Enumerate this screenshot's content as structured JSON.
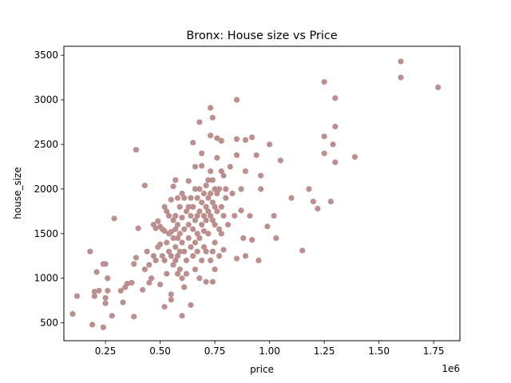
{
  "chart_data": {
    "type": "scatter",
    "title": "Bronx: House size vs Price",
    "xlabel": "price",
    "ylabel": "house_size",
    "x_offset_label": "1e6",
    "xlim": [
      0.06,
      1.87
    ],
    "ylim": [
      300,
      3600
    ],
    "xticks": [
      {
        "value": 0.25,
        "label": "0.25"
      },
      {
        "value": 0.5,
        "label": "0.50"
      },
      {
        "value": 0.75,
        "label": "0.75"
      },
      {
        "value": 1.0,
        "label": "1.00"
      },
      {
        "value": 1.25,
        "label": "1.25"
      },
      {
        "value": 1.5,
        "label": "1.50"
      },
      {
        "value": 1.75,
        "label": "1.75"
      }
    ],
    "yticks": [
      {
        "value": 500,
        "label": "500"
      },
      {
        "value": 1000,
        "label": "1000"
      },
      {
        "value": 1500,
        "label": "1500"
      },
      {
        "value": 2000,
        "label": "2000"
      },
      {
        "value": 2500,
        "label": "2500"
      },
      {
        "value": 3000,
        "label": "3000"
      },
      {
        "value": 3500,
        "label": "3500"
      }
    ],
    "grid": false,
    "legend": "none",
    "marker_color": "#bc8f8f",
    "points": [
      [
        0.1,
        600
      ],
      [
        0.12,
        800
      ],
      [
        0.18,
        1300
      ],
      [
        0.19,
        480
      ],
      [
        0.2,
        800
      ],
      [
        0.2,
        850
      ],
      [
        0.21,
        1070
      ],
      [
        0.22,
        860
      ],
      [
        0.24,
        450
      ],
      [
        0.24,
        1160
      ],
      [
        0.25,
        1160
      ],
      [
        0.25,
        720
      ],
      [
        0.25,
        780
      ],
      [
        0.26,
        860
      ],
      [
        0.26,
        1000
      ],
      [
        0.28,
        580
      ],
      [
        0.29,
        1670
      ],
      [
        0.32,
        860
      ],
      [
        0.33,
        730
      ],
      [
        0.34,
        900
      ],
      [
        0.35,
        940
      ],
      [
        0.37,
        950
      ],
      [
        0.38,
        570
      ],
      [
        0.38,
        1160
      ],
      [
        0.39,
        1230
      ],
      [
        0.39,
        2440
      ],
      [
        0.4,
        1560
      ],
      [
        0.42,
        870
      ],
      [
        0.43,
        1100
      ],
      [
        0.43,
        2040
      ],
      [
        0.44,
        1300
      ],
      [
        0.45,
        1150
      ],
      [
        0.45,
        950
      ],
      [
        0.46,
        1000
      ],
      [
        0.47,
        1250
      ],
      [
        0.47,
        1600
      ],
      [
        0.48,
        1200
      ],
      [
        0.48,
        1560
      ],
      [
        0.49,
        1640
      ],
      [
        0.49,
        1350
      ],
      [
        0.5,
        1580
      ],
      [
        0.5,
        1380
      ],
      [
        0.5,
        930
      ],
      [
        0.51,
        1550
      ],
      [
        0.51,
        1250
      ],
      [
        0.52,
        1800
      ],
      [
        0.52,
        1530
      ],
      [
        0.52,
        1200
      ],
      [
        0.52,
        680
      ],
      [
        0.53,
        1750
      ],
      [
        0.53,
        1400
      ],
      [
        0.53,
        1050
      ],
      [
        0.54,
        1700
      ],
      [
        0.54,
        1500
      ],
      [
        0.54,
        1300
      ],
      [
        0.55,
        1880
      ],
      [
        0.55,
        1520
      ],
      [
        0.55,
        1250
      ],
      [
        0.55,
        820
      ],
      [
        0.55,
        760
      ],
      [
        0.56,
        2030
      ],
      [
        0.56,
        1650
      ],
      [
        0.56,
        1450
      ],
      [
        0.56,
        1150
      ],
      [
        0.57,
        1700
      ],
      [
        0.57,
        1550
      ],
      [
        0.57,
        1350
      ],
      [
        0.57,
        1200
      ],
      [
        0.57,
        2100
      ],
      [
        0.58,
        1900
      ],
      [
        0.58,
        1600
      ],
      [
        0.58,
        1450
      ],
      [
        0.58,
        1250
      ],
      [
        0.58,
        1050
      ],
      [
        0.59,
        1800
      ],
      [
        0.59,
        1500
      ],
      [
        0.59,
        1300
      ],
      [
        0.59,
        1100
      ],
      [
        0.6,
        1950
      ],
      [
        0.6,
        1680
      ],
      [
        0.6,
        1400
      ],
      [
        0.6,
        1000
      ],
      [
        0.6,
        580
      ],
      [
        0.61,
        1900
      ],
      [
        0.61,
        1550
      ],
      [
        0.61,
        1300
      ],
      [
        0.61,
        900
      ],
      [
        0.62,
        1750
      ],
      [
        0.62,
        1200
      ],
      [
        0.62,
        1050
      ],
      [
        0.63,
        2090
      ],
      [
        0.63,
        1800
      ],
      [
        0.63,
        1600
      ],
      [
        0.63,
        1450
      ],
      [
        0.64,
        1900
      ],
      [
        0.64,
        1700
      ],
      [
        0.64,
        1350
      ],
      [
        0.64,
        700
      ],
      [
        0.65,
        2520
      ],
      [
        0.65,
        1800
      ],
      [
        0.65,
        1550
      ],
      [
        0.65,
        1250
      ],
      [
        0.66,
        2250
      ],
      [
        0.66,
        2000
      ],
      [
        0.66,
        1650
      ],
      [
        0.66,
        1400
      ],
      [
        0.66,
        1100
      ],
      [
        0.67,
        1900
      ],
      [
        0.67,
        1700
      ],
      [
        0.67,
        1500
      ],
      [
        0.67,
        1300
      ],
      [
        0.68,
        2750
      ],
      [
        0.68,
        2000
      ],
      [
        0.68,
        1750
      ],
      [
        0.68,
        1450
      ],
      [
        0.68,
        1000
      ],
      [
        0.69,
        2260
      ],
      [
        0.69,
        2400
      ],
      [
        0.69,
        1850
      ],
      [
        0.69,
        1600
      ],
      [
        0.69,
        1200
      ],
      [
        0.7,
        1950
      ],
      [
        0.7,
        1700
      ],
      [
        0.7,
        1530
      ],
      [
        0.7,
        1350
      ],
      [
        0.71,
        2040
      ],
      [
        0.71,
        1800
      ],
      [
        0.71,
        1650
      ],
      [
        0.71,
        1300
      ],
      [
        0.71,
        960
      ],
      [
        0.72,
        2100
      ],
      [
        0.72,
        1900
      ],
      [
        0.72,
        1750
      ],
      [
        0.72,
        1500
      ],
      [
        0.73,
        2910
      ],
      [
        0.73,
        2600
      ],
      [
        0.73,
        2200
      ],
      [
        0.73,
        1950
      ],
      [
        0.73,
        1700
      ],
      [
        0.73,
        1200
      ],
      [
        0.74,
        2800
      ],
      [
        0.74,
        2100
      ],
      [
        0.74,
        1850
      ],
      [
        0.74,
        1650
      ],
      [
        0.74,
        1300
      ],
      [
        0.74,
        960
      ],
      [
        0.75,
        2000
      ],
      [
        0.75,
        1800
      ],
      [
        0.75,
        1600
      ],
      [
        0.75,
        1400
      ],
      [
        0.75,
        1100
      ],
      [
        0.76,
        2570
      ],
      [
        0.76,
        2350
      ],
      [
        0.76,
        1950
      ],
      [
        0.76,
        1750
      ],
      [
        0.77,
        2000
      ],
      [
        0.77,
        1550
      ],
      [
        0.77,
        1250
      ],
      [
        0.78,
        2540
      ],
      [
        0.78,
        2200
      ],
      [
        0.78,
        1800
      ],
      [
        0.78,
        1500
      ],
      [
        0.79,
        2150
      ],
      [
        0.79,
        1700
      ],
      [
        0.79,
        1320
      ],
      [
        0.8,
        2000
      ],
      [
        0.8,
        1900
      ],
      [
        0.81,
        1600
      ],
      [
        0.82,
        2250
      ],
      [
        0.83,
        1950
      ],
      [
        0.84,
        1700
      ],
      [
        0.85,
        3000
      ],
      [
        0.85,
        2560
      ],
      [
        0.85,
        2380
      ],
      [
        0.85,
        1220
      ],
      [
        0.87,
        2000
      ],
      [
        0.87,
        1760
      ],
      [
        0.88,
        1450
      ],
      [
        0.89,
        2550
      ],
      [
        0.89,
        2200
      ],
      [
        0.89,
        1250
      ],
      [
        0.91,
        1700
      ],
      [
        0.92,
        2580
      ],
      [
        0.92,
        1430
      ],
      [
        0.94,
        2380
      ],
      [
        0.95,
        1200
      ],
      [
        0.96,
        2150
      ],
      [
        0.96,
        2000
      ],
      [
        0.99,
        1580
      ],
      [
        1.0,
        2500
      ],
      [
        1.02,
        1700
      ],
      [
        1.03,
        1450
      ],
      [
        1.05,
        2320
      ],
      [
        1.1,
        1900
      ],
      [
        1.15,
        1310
      ],
      [
        1.18,
        2000
      ],
      [
        1.2,
        1860
      ],
      [
        1.22,
        1780
      ],
      [
        1.25,
        3200
      ],
      [
        1.25,
        2590
      ],
      [
        1.25,
        2400
      ],
      [
        1.28,
        1860
      ],
      [
        1.29,
        2500
      ],
      [
        1.3,
        3020
      ],
      [
        1.3,
        2700
      ],
      [
        1.3,
        2300
      ],
      [
        1.39,
        2360
      ],
      [
        1.6,
        3430
      ],
      [
        1.6,
        3250
      ],
      [
        1.77,
        3140
      ]
    ]
  }
}
